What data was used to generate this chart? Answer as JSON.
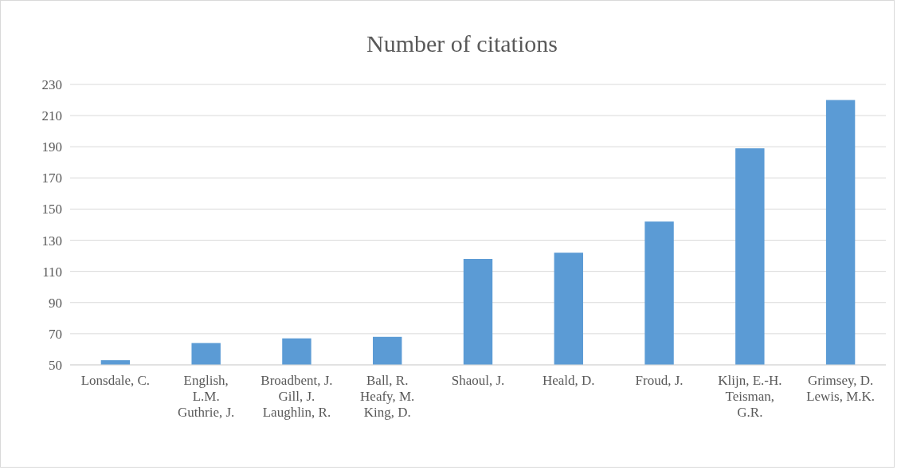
{
  "chart_data": {
    "type": "bar",
    "title": "Number of citations",
    "categories": [
      "Lonsdale, C.",
      "English, L.M. Guthrie, J.",
      "Broadbent, J. Gill, J. Laughlin, R.",
      "Ball, R. Heafy, M. King, D.",
      "Shaoul, J.",
      "Heald, D.",
      "Froud, J.",
      "Klijn, E.-H. Teisman, G.R.",
      "Grimsey, D. Lewis, M.K."
    ],
    "values": [
      53,
      64,
      67,
      68,
      118,
      122,
      142,
      189,
      220
    ],
    "color": "#5b9bd5",
    "ylim": [
      50,
      230
    ],
    "yticks": [
      50,
      70,
      90,
      110,
      130,
      150,
      170,
      190,
      210,
      230
    ],
    "grid": "y"
  }
}
